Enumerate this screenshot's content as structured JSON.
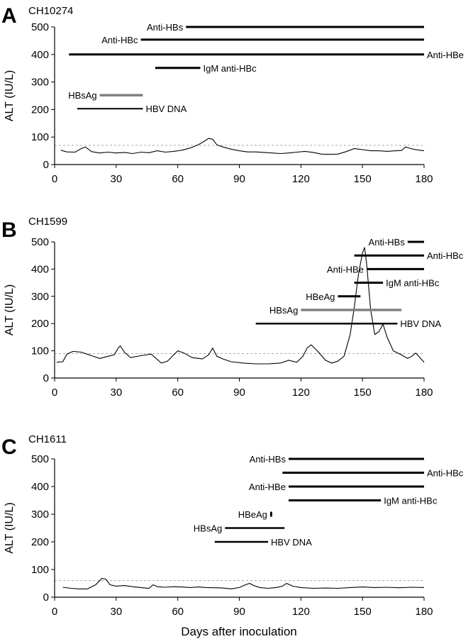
{
  "figure": {
    "xlabel": "Days after inoculation"
  },
  "chart_data": [
    {
      "type": "line",
      "panel": "A",
      "title": "CH10274",
      "ylabel": "ALT (IU/L)",
      "xlim": [
        0,
        180
      ],
      "ylim": [
        0,
        500
      ],
      "x_ticks": [
        0,
        30,
        60,
        90,
        120,
        150,
        180
      ],
      "y_ticks": [
        0,
        100,
        200,
        300,
        400,
        500
      ],
      "threshold": 70,
      "alt_series": {
        "x": [
          3,
          6,
          10,
          13,
          15,
          18,
          22,
          26,
          30,
          34,
          38,
          42,
          46,
          50,
          54,
          58,
          62,
          66,
          70,
          73,
          75,
          77,
          79,
          82,
          86,
          90,
          94,
          98,
          102,
          106,
          110,
          114,
          118,
          122,
          126,
          130,
          134,
          138,
          142,
          146,
          150,
          154,
          158,
          162,
          166,
          169,
          171,
          174,
          177,
          180
        ],
        "y": [
          52,
          46,
          45,
          58,
          64,
          47,
          42,
          45,
          42,
          44,
          40,
          45,
          43,
          50,
          45,
          48,
          52,
          60,
          72,
          85,
          95,
          92,
          72,
          64,
          56,
          50,
          46,
          46,
          44,
          42,
          40,
          42,
          45,
          48,
          44,
          38,
          37,
          38,
          47,
          58,
          54,
          50,
          50,
          48,
          50,
          51,
          64,
          57,
          53,
          50
        ]
      },
      "markers": [
        {
          "label": "Anti-HBs",
          "start": 64,
          "end": 180,
          "level": 500,
          "label_side": "left",
          "color": "#000000",
          "width": 3
        },
        {
          "label": "Anti-HBc",
          "start": 42,
          "end": 180,
          "level": 454,
          "label_side": "left",
          "color": "#000000",
          "width": 3
        },
        {
          "label": "Anti-HBe",
          "start": 7,
          "end": 180,
          "level": 400,
          "label_side": "right",
          "color": "#000000",
          "width": 3
        },
        {
          "label": "IgM anti-HBc",
          "start": 49,
          "end": 71,
          "level": 351,
          "label_side": "right",
          "color": "#000000",
          "width": 3
        },
        {
          "label": "HBsAg",
          "start": 22,
          "end": 43,
          "level": 252,
          "label_side": "left",
          "color": "#808080",
          "width": 3.5
        },
        {
          "label": "HBV DNA",
          "start": 11,
          "end": 43,
          "level": 203,
          "label_side": "right",
          "color": "#000000",
          "width": 2
        }
      ]
    },
    {
      "type": "line",
      "panel": "B",
      "title": "CH1599",
      "ylabel": "ALT (IU/L)",
      "xlim": [
        0,
        180
      ],
      "ylim": [
        0,
        500
      ],
      "x_ticks": [
        0,
        30,
        60,
        90,
        120,
        150,
        180
      ],
      "y_ticks": [
        0,
        100,
        200,
        300,
        400,
        500
      ],
      "threshold": 90,
      "alt_series": {
        "x": [
          1,
          4,
          6,
          9,
          13,
          18,
          22,
          26,
          29,
          31,
          32,
          34,
          37,
          42,
          47,
          52,
          55,
          58,
          60,
          63,
          67,
          72,
          75,
          77,
          79,
          82,
          86,
          92,
          98,
          104,
          110,
          114,
          118,
          121,
          123,
          125,
          128,
          132,
          135,
          138,
          141,
          144,
          146,
          148,
          150,
          151,
          152,
          154,
          156,
          158,
          160,
          162,
          165,
          169,
          172,
          174,
          176,
          178,
          180
        ],
        "y": [
          58,
          60,
          88,
          98,
          95,
          82,
          72,
          80,
          85,
          110,
          118,
          95,
          75,
          82,
          88,
          55,
          62,
          85,
          100,
          92,
          75,
          70,
          85,
          110,
          80,
          70,
          60,
          55,
          52,
          52,
          55,
          65,
          58,
          80,
          110,
          122,
          100,
          65,
          55,
          62,
          80,
          160,
          260,
          380,
          460,
          480,
          420,
          250,
          160,
          170,
          198,
          150,
          100,
          85,
          72,
          80,
          92,
          75,
          58
        ]
      },
      "markers": [
        {
          "label": "Anti-HBs",
          "start": 172,
          "end": 180,
          "level": 500,
          "label_side": "left",
          "color": "#000000",
          "width": 3
        },
        {
          "label": "Anti-HBc",
          "start": 146,
          "end": 180,
          "level": 450,
          "label_side": "right",
          "color": "#000000",
          "width": 3
        },
        {
          "label": "Anti-HBe",
          "start": 152,
          "end": 180,
          "level": 400,
          "label_side": "left",
          "color": "#000000",
          "width": 3
        },
        {
          "label": "IgM anti-HBc",
          "start": 146,
          "end": 160,
          "level": 350,
          "label_side": "right",
          "color": "#000000",
          "width": 3
        },
        {
          "label": "HBeAg",
          "start": 138,
          "end": 149,
          "level": 300,
          "label_side": "left",
          "color": "#000000",
          "width": 3
        },
        {
          "label": "HBsAg",
          "start": 120,
          "end": 169,
          "level": 250,
          "label_side": "left",
          "color": "#808080",
          "width": 3.5
        },
        {
          "label": "HBV DNA",
          "start": 98,
          "end": 167,
          "level": 200,
          "label_side": "right",
          "color": "#000000",
          "width": 2.5
        }
      ]
    },
    {
      "type": "line",
      "panel": "C",
      "title": "CH1611",
      "ylabel": "ALT (IU/L)",
      "xlim": [
        0,
        180
      ],
      "ylim": [
        0,
        500
      ],
      "x_ticks": [
        0,
        30,
        60,
        90,
        120,
        150,
        180
      ],
      "y_ticks": [
        0,
        100,
        200,
        300,
        400,
        500
      ],
      "threshold": 60,
      "alt_series": {
        "x": [
          4,
          8,
          12,
          16,
          20,
          23,
          25,
          27,
          30,
          34,
          38,
          42,
          46,
          48,
          50,
          54,
          58,
          62,
          66,
          70,
          74,
          78,
          82,
          86,
          90,
          93,
          95,
          97,
          100,
          104,
          108,
          111,
          113,
          116,
          120,
          126,
          132,
          138,
          144,
          150,
          156,
          162,
          168,
          174,
          180
        ],
        "y": [
          36,
          32,
          30,
          30,
          45,
          68,
          65,
          45,
          40,
          42,
          38,
          35,
          32,
          45,
          38,
          36,
          38,
          37,
          35,
          37,
          35,
          34,
          33,
          30,
          35,
          45,
          50,
          42,
          35,
          32,
          35,
          40,
          50,
          40,
          35,
          32,
          33,
          32,
          35,
          37,
          35,
          36,
          34,
          36,
          35
        ]
      },
      "markers": [
        {
          "label": "Anti-HBs",
          "start": 114,
          "end": 180,
          "level": 500,
          "label_side": "left",
          "color": "#000000",
          "width": 3
        },
        {
          "label": "Anti-HBc",
          "start": 111,
          "end": 180,
          "level": 450,
          "label_side": "right",
          "color": "#000000",
          "width": 3
        },
        {
          "label": "Anti-HBe",
          "start": 114,
          "end": 180,
          "level": 400,
          "label_side": "left",
          "color": "#000000",
          "width": 3
        },
        {
          "label": "IgM anti-HBc",
          "start": 114,
          "end": 159,
          "level": 350,
          "label_side": "right",
          "color": "#000000",
          "width": 3
        },
        {
          "label": "HBeAg",
          "start": 105,
          "end": 106,
          "level": 300,
          "label_side": "left",
          "color": "#000000",
          "width": 7
        },
        {
          "label": "HBsAg",
          "start": 83,
          "end": 112,
          "level": 250,
          "label_side": "left",
          "color": "#000000",
          "width": 2.5
        },
        {
          "label": "HBV DNA",
          "start": 78,
          "end": 104,
          "level": 200,
          "label_side": "right",
          "color": "#000000",
          "width": 2.5
        }
      ]
    }
  ]
}
